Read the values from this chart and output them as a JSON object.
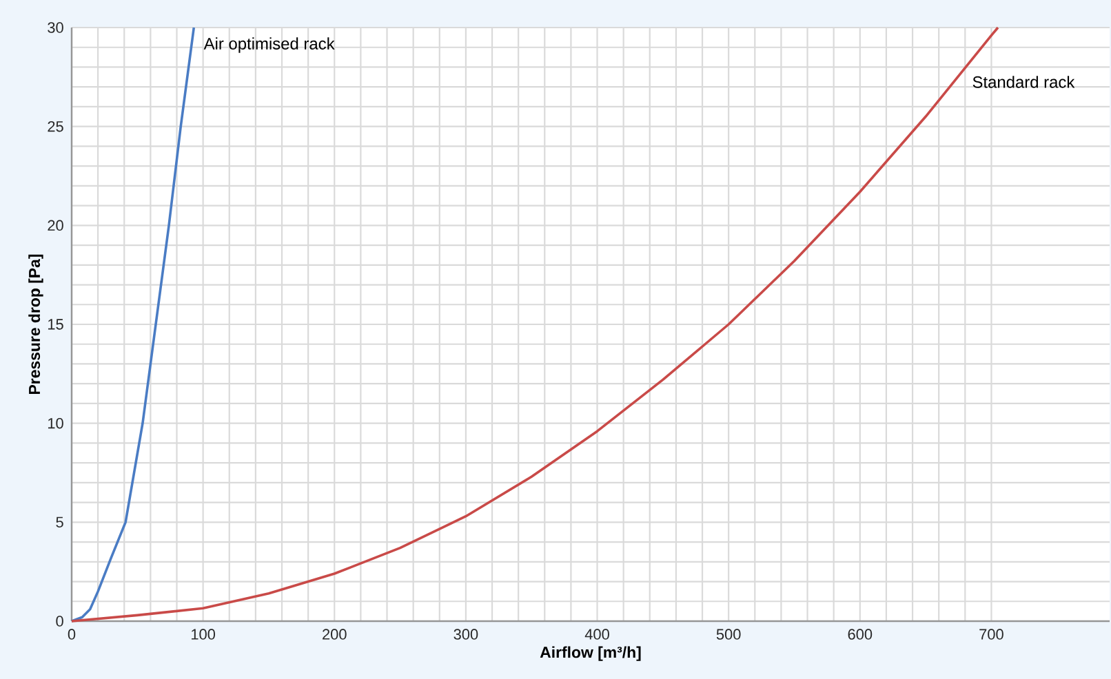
{
  "chart_data": {
    "type": "line",
    "xlabel": "Airflow [m³/h]",
    "ylabel": "Pressure drop [Pa]",
    "xlim": [
      0,
      790
    ],
    "ylim": [
      0,
      30
    ],
    "xticks": [
      0,
      100,
      200,
      300,
      400,
      500,
      600,
      700
    ],
    "yticks": [
      0,
      5,
      10,
      15,
      20,
      25,
      30
    ],
    "grid": true,
    "marker": "none",
    "line_style": "solid",
    "series": [
      {
        "name": "Air optimised rack",
        "color": "#4a7cc4",
        "x": [
          0,
          8,
          14,
          20,
          30,
          41,
          54,
          64,
          74,
          83,
          93
        ],
        "values": [
          0,
          0.2,
          0.6,
          1.5,
          3.2,
          5,
          10,
          15,
          20,
          25,
          30
        ]
      },
      {
        "name": "Standard rack",
        "color": "#c94a48",
        "x": [
          0,
          50,
          100,
          150,
          200,
          250,
          300,
          350,
          400,
          450,
          500,
          550,
          600,
          650,
          700,
          705
        ],
        "values": [
          0,
          0.3,
          0.65,
          1.4,
          2.4,
          3.7,
          5.3,
          7.3,
          9.6,
          12.2,
          15,
          18.2,
          21.7,
          25.5,
          29.6,
          30
        ]
      }
    ]
  }
}
